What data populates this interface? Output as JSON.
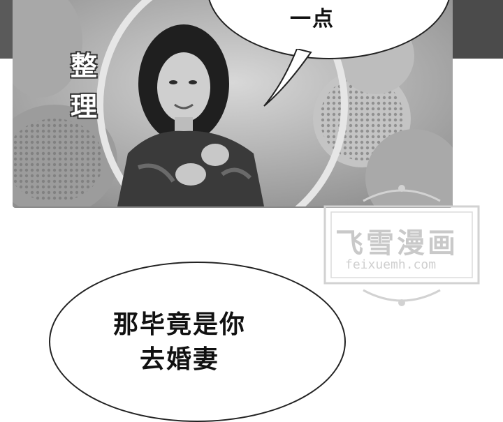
{
  "panel": {
    "top_bubble_text": "一点",
    "credit_label": "整理"
  },
  "watermark": {
    "title": "飞雪漫画",
    "url": "feixuemh.com"
  },
  "bottom_bubble": {
    "line1": "那毕竟是你",
    "line2": "去婚妻"
  }
}
